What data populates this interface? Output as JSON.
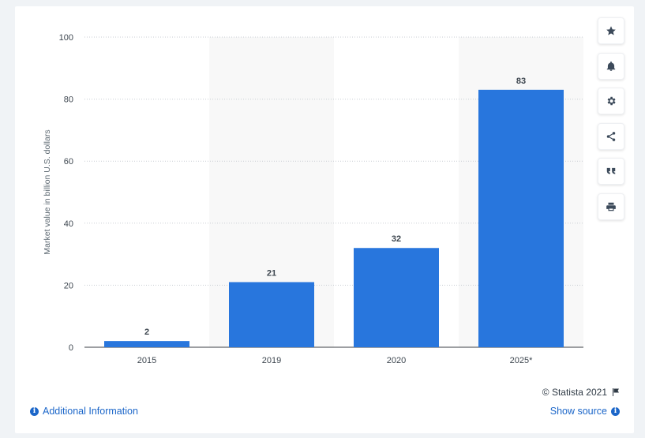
{
  "chart_data": {
    "type": "bar",
    "categories": [
      "2015",
      "2019",
      "2020",
      "2025*"
    ],
    "values": [
      2,
      21,
      32,
      83
    ],
    "ylabel": "Market value in billion U.S. dollars",
    "ylim": [
      0,
      100
    ],
    "yticks": [
      0,
      20,
      40,
      60,
      80,
      100
    ],
    "grid": true,
    "bar_color": "#2876dd",
    "band_color": "#f8f8f8",
    "grid_color": "#c9ced3"
  },
  "toolbar": {
    "icons": [
      "star-icon",
      "bell-icon",
      "gear-icon",
      "share-icon",
      "quote-icon",
      "print-icon"
    ]
  },
  "footer": {
    "credit": "© Statista 2021",
    "additional_info": "Additional Information",
    "show_source": "Show source"
  }
}
